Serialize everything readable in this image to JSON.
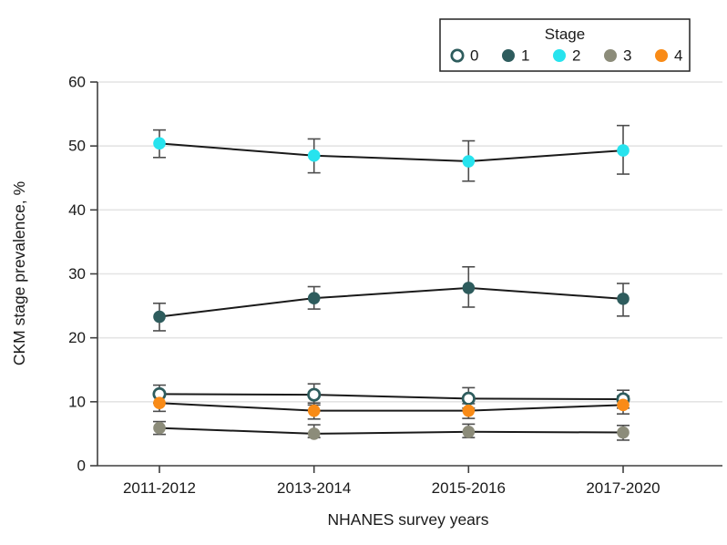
{
  "figure": {
    "background_color": "#ffffff",
    "text_color": "#1a1a1a"
  },
  "chart_data": {
    "type": "line",
    "title": "",
    "xlabel": "NHANES survey years",
    "ylabel": "CKM stage prevalence, %",
    "categories": [
      "2011-2012",
      "2013-2014",
      "2015-2016",
      "2017-2020"
    ],
    "ylim": [
      0,
      60
    ],
    "yticks": [
      0,
      10,
      20,
      30,
      40,
      50,
      60
    ],
    "grid": true,
    "error_bars": true,
    "legend": {
      "title": "Stage",
      "position": "top-right",
      "entries": [
        "0",
        "1",
        "2",
        "3",
        "4"
      ]
    },
    "series": [
      {
        "name": "0",
        "marker": "open-circle",
        "color": "#2E5C5D",
        "marker_fill": "#ffffff",
        "values": [
          11.2,
          11.1,
          10.5,
          10.4
        ],
        "err_lo": [
          9.8,
          9.5,
          9.0,
          9.0
        ],
        "err_hi": [
          12.6,
          12.8,
          12.2,
          11.8
        ]
      },
      {
        "name": "1",
        "marker": "circle",
        "color": "#2E5C5D",
        "values": [
          23.3,
          26.2,
          27.8,
          26.1
        ],
        "err_lo": [
          21.1,
          24.5,
          24.8,
          23.4
        ],
        "err_hi": [
          25.4,
          28.0,
          31.1,
          28.5
        ]
      },
      {
        "name": "2",
        "marker": "circle",
        "color": "#27E3EE",
        "values": [
          50.4,
          48.5,
          47.6,
          49.3
        ],
        "err_lo": [
          48.2,
          45.8,
          44.5,
          45.6
        ],
        "err_hi": [
          52.5,
          51.1,
          50.8,
          53.2
        ]
      },
      {
        "name": "3",
        "marker": "circle",
        "color": "#8C8C7A",
        "values": [
          5.9,
          5.0,
          5.3,
          5.2
        ],
        "err_lo": [
          4.9,
          4.4,
          4.4,
          4.0
        ],
        "err_hi": [
          6.9,
          6.4,
          6.5,
          6.3
        ]
      },
      {
        "name": "4",
        "marker": "circle",
        "color": "#F98B17",
        "values": [
          9.8,
          8.6,
          8.6,
          9.5
        ],
        "err_lo": [
          8.5,
          7.3,
          7.4,
          8.1
        ],
        "err_hi": [
          11.0,
          9.8,
          9.7,
          10.9
        ]
      }
    ],
    "style_colors": {
      "line": "#1a1a1a",
      "error_bar": "#4d4d4d",
      "gridline": "#e4e4e4",
      "axis": "#3f3f3f",
      "legend_border": "#222222"
    }
  }
}
